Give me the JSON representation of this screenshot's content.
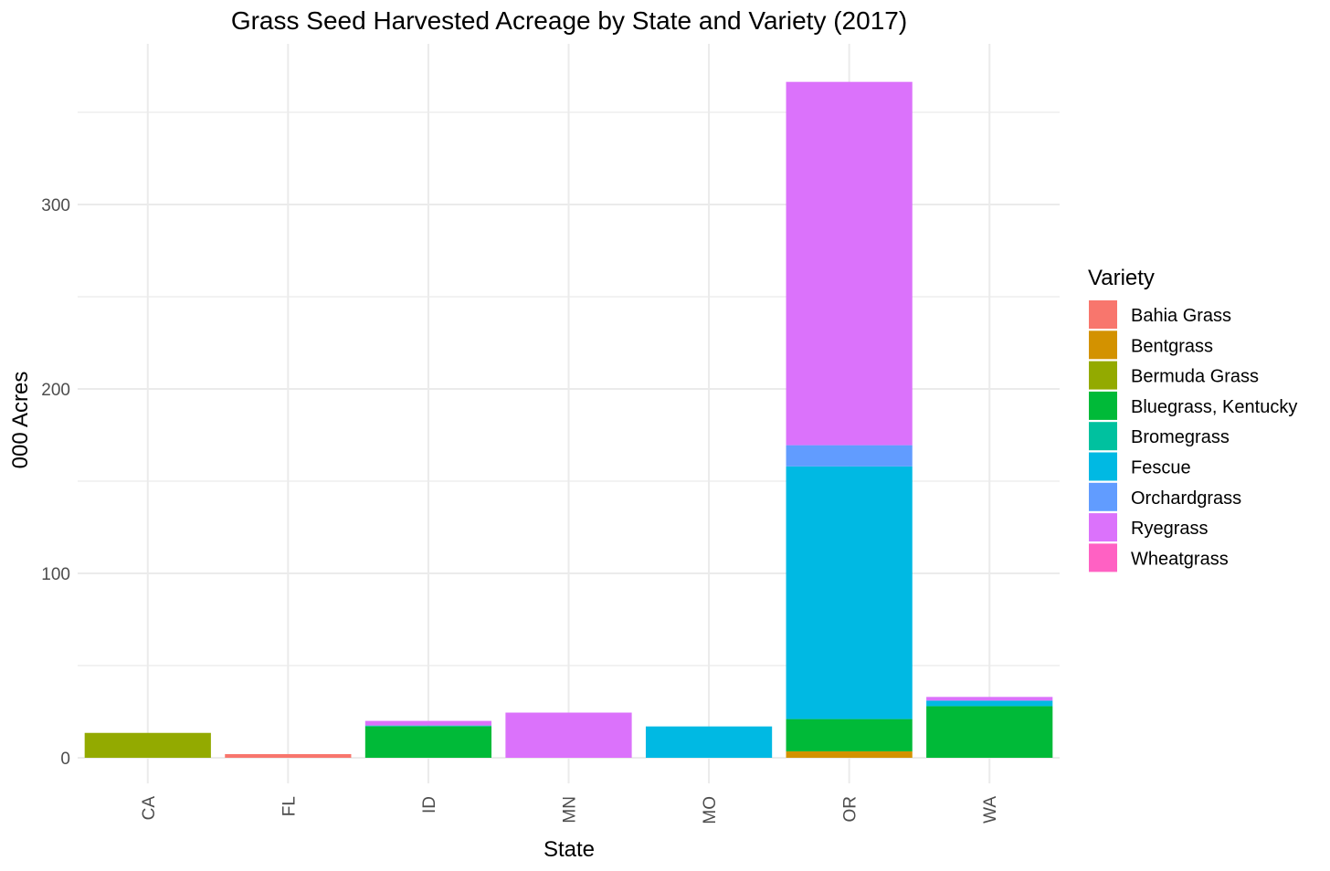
{
  "chart_data": {
    "type": "bar",
    "stacked": true,
    "title": "Grass Seed Harvested Acreage by State and Variety (2017)",
    "xlabel": "State",
    "ylabel": "000 Acres",
    "categories": [
      "CA",
      "FL",
      "ID",
      "MN",
      "MO",
      "OR",
      "WA"
    ],
    "ylim": [
      -7,
      385
    ],
    "yticks": [
      0,
      100,
      200,
      300
    ],
    "legend": {
      "title": "Variety",
      "position": "right"
    },
    "grid": true,
    "series": [
      {
        "name": "Bahia Grass",
        "color": "#F8766D",
        "values": [
          0,
          2,
          0,
          0,
          0,
          0,
          0
        ]
      },
      {
        "name": "Bentgrass",
        "color": "#D39200",
        "values": [
          0,
          0,
          0,
          0,
          0,
          3.5,
          0
        ]
      },
      {
        "name": "Bermuda Grass",
        "color": "#93AA00",
        "values": [
          13.5,
          0,
          0,
          0,
          0,
          0,
          0
        ]
      },
      {
        "name": "Bluegrass, Kentucky",
        "color": "#00BA38",
        "values": [
          0,
          0,
          17,
          0,
          0,
          17.5,
          28
        ]
      },
      {
        "name": "Bromegrass",
        "color": "#00C19F",
        "values": [
          0,
          0,
          0.5,
          0,
          0,
          0,
          0
        ]
      },
      {
        "name": "Fescue",
        "color": "#00B9E3",
        "values": [
          0,
          0,
          0,
          0,
          17,
          137,
          3
        ]
      },
      {
        "name": "Orchardgrass",
        "color": "#619CFF",
        "values": [
          0,
          0,
          0,
          0,
          0,
          11.5,
          0
        ]
      },
      {
        "name": "Ryegrass",
        "color": "#DB72FB",
        "values": [
          0,
          0,
          2.5,
          24.5,
          0,
          197,
          2
        ]
      },
      {
        "name": "Wheatgrass",
        "color": "#FF61C3",
        "values": [
          0,
          0,
          0,
          0,
          0,
          0,
          0
        ]
      }
    ]
  }
}
